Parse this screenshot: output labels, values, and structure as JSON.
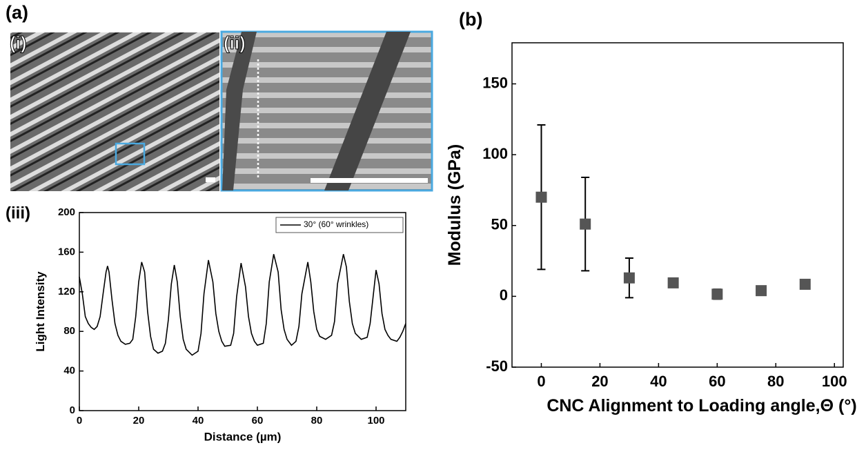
{
  "panels": {
    "a": "(a)",
    "i": "(i)",
    "ii": "(ii)"
  },
  "chart_data": [
    {
      "type": "line",
      "title": "(iii)",
      "xlabel": "Distance (µm)",
      "ylabel": "Light Intensity",
      "xlim": [
        0,
        110
      ],
      "xticks": [
        0,
        20,
        40,
        60,
        80,
        100
      ],
      "ylim": [
        0,
        200
      ],
      "yticks": [
        0,
        40,
        80,
        120,
        160,
        200
      ],
      "legend": "upper right",
      "series": [
        {
          "name": "30° (60° wrinkles)",
          "color": "#000000",
          "x": [
            0,
            1,
            2,
            3,
            4,
            5,
            6,
            7,
            8,
            9,
            9.5,
            10,
            11,
            12,
            13,
            14,
            15.5,
            17,
            18,
            19,
            20,
            21,
            22,
            23,
            24,
            25,
            26.5,
            28,
            29,
            30,
            31,
            32,
            33,
            34,
            35,
            36,
            38,
            40,
            41,
            42,
            43.5,
            45,
            46,
            47,
            48,
            49,
            51,
            52,
            53,
            54.5,
            56,
            57,
            58,
            59,
            60,
            62,
            63,
            64,
            65.5,
            67,
            68,
            69,
            70,
            71.5,
            73,
            74,
            75,
            77,
            78,
            79,
            80,
            81,
            83,
            85,
            86,
            87,
            89,
            90,
            91,
            92,
            93,
            95,
            97,
            98,
            99,
            100,
            101,
            102,
            103,
            104,
            105,
            107,
            108,
            109,
            110
          ],
          "values": [
            135,
            118,
            95,
            88,
            84,
            82,
            85,
            95,
            118,
            140,
            146,
            140,
            112,
            88,
            76,
            70,
            67,
            68,
            72,
            95,
            130,
            150,
            140,
            100,
            75,
            62,
            58,
            60,
            68,
            92,
            128,
            147,
            130,
            95,
            72,
            62,
            56,
            60,
            78,
            118,
            152,
            130,
            98,
            80,
            70,
            65,
            66,
            78,
            115,
            149,
            125,
            95,
            78,
            70,
            66,
            68,
            88,
            130,
            158,
            140,
            102,
            82,
            72,
            66,
            70,
            85,
            118,
            150,
            130,
            100,
            82,
            75,
            72,
            76,
            90,
            128,
            158,
            145,
            110,
            88,
            78,
            72,
            74,
            88,
            115,
            142,
            128,
            98,
            82,
            76,
            72,
            70,
            74,
            80,
            88
          ]
        }
      ]
    },
    {
      "type": "scatter",
      "title": "(b)",
      "xlabel": "CNC Alignment to Loading angle,Θ (°)",
      "ylabel": "Modulus (GPa)",
      "xlim": [
        -10,
        103
      ],
      "xticks": [
        0,
        20,
        40,
        60,
        80,
        100
      ],
      "ylim": [
        -50,
        179
      ],
      "yticks": [
        -50,
        0,
        50,
        100,
        150
      ],
      "color": "#555555",
      "x": [
        0,
        15,
        30,
        45,
        60,
        75,
        90
      ],
      "values": [
        70,
        51,
        13,
        9.5,
        1.5,
        4,
        8.5
      ],
      "errors": [
        51,
        33,
        14,
        3,
        3.5,
        3,
        3
      ]
    }
  ]
}
